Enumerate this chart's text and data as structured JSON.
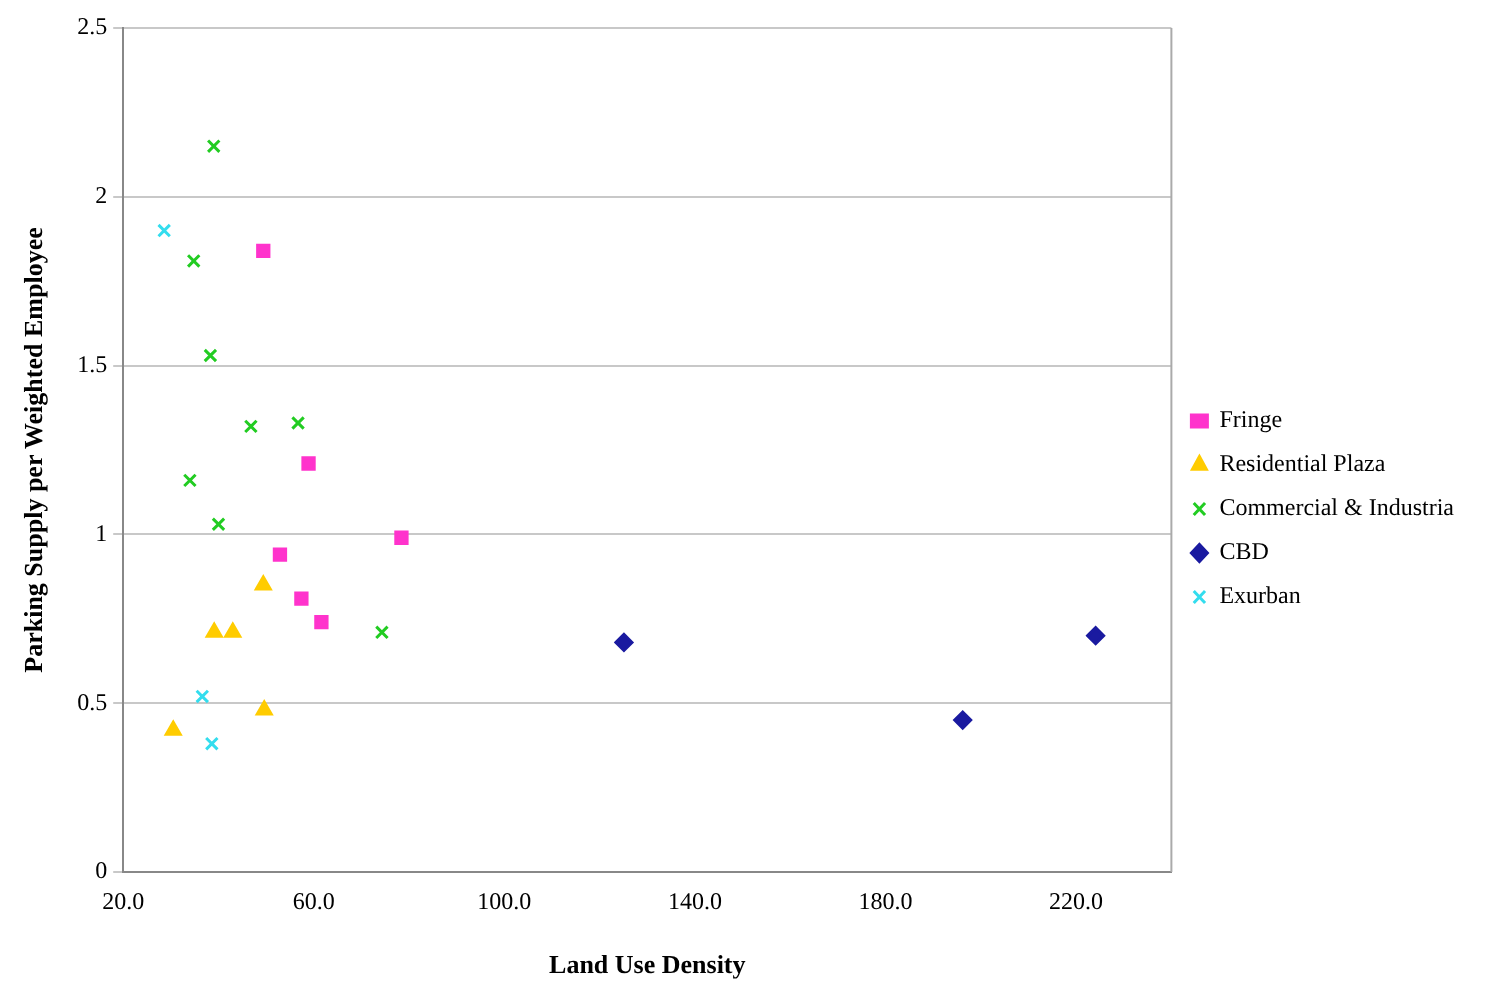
{
  "chart_data": {
    "type": "scatter",
    "xlabel": "Land Use Density",
    "ylabel": "Parking Supply per Weighted Employee",
    "xlim": [
      20,
      240
    ],
    "xticks": [
      {
        "value": 20,
        "label": "20.0"
      },
      {
        "value": 60,
        "label": "60.0"
      },
      {
        "value": 100,
        "label": "100.0"
      },
      {
        "value": 140,
        "label": "140.0"
      },
      {
        "value": 180,
        "label": "180.0"
      },
      {
        "value": 220,
        "label": "220.0"
      }
    ],
    "ylim": [
      0,
      2.5
    ],
    "yticks": [
      0,
      0.5,
      1,
      1.5,
      2,
      2.5
    ],
    "grid": "y",
    "legend": "right",
    "series": [
      {
        "name": "Fringe",
        "color": "#ff33cc",
        "marker": "square",
        "x": [
          49.4,
          58.9,
          78.4,
          52.9,
          57.4,
          61.6
        ],
        "values": [
          1.84,
          1.21,
          0.99,
          0.94,
          0.81,
          0.74
        ]
      },
      {
        "name": "Residential Plaza",
        "color": "#ffcc00",
        "marker": "triangle",
        "x": [
          39.1,
          43,
          49.6,
          30.5,
          49.4
        ],
        "values": [
          0.71,
          0.71,
          0.48,
          0.42,
          0.85
        ]
      },
      {
        "name": "Commercial & Industria",
        "color": "#22cc22",
        "marker": "cross",
        "x": [
          39,
          34.8,
          38.3,
          46.8,
          56.7,
          34,
          40,
          74.3
        ],
        "values": [
          2.15,
          1.81,
          1.53,
          1.32,
          1.33,
          1.16,
          1.03,
          0.71
        ]
      },
      {
        "name": "CBD",
        "color": "#1a1aa0",
        "marker": "diamond",
        "x": [
          125.1,
          196.2,
          224.1
        ],
        "values": [
          0.68,
          0.45,
          0.7
        ]
      },
      {
        "name": "Exurban",
        "color": "#33ddee",
        "marker": "cross",
        "x": [
          28.6,
          36.6,
          38.6
        ],
        "values": [
          1.9,
          0.52,
          0.38
        ]
      }
    ]
  }
}
